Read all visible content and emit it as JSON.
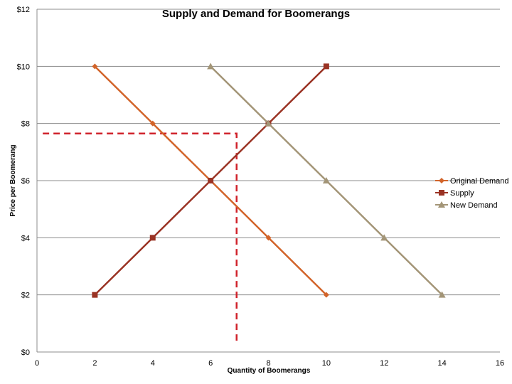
{
  "chart_data": {
    "type": "line",
    "title": "Supply and Demand for Boomerangs",
    "xlabel": "Quantity of Boomerangs",
    "ylabel": "Price per Boomerang",
    "xlim": [
      0,
      16
    ],
    "ylim": [
      0,
      12
    ],
    "x_ticks": [
      "0",
      "2",
      "4",
      "6",
      "8",
      "10",
      "12",
      "14",
      "16"
    ],
    "y_ticks": [
      "$0",
      "$2",
      "$4",
      "$6",
      "$8",
      "$10",
      "$12"
    ],
    "grid": "horizontal",
    "legend_position": "right",
    "series": [
      {
        "name": "Original Demand",
        "color": "#d2642a",
        "marker": "diamond",
        "points": [
          [
            2,
            10
          ],
          [
            4,
            8
          ],
          [
            6,
            6
          ],
          [
            8,
            4
          ],
          [
            10,
            2
          ]
        ]
      },
      {
        "name": "Supply",
        "color": "#9a3324",
        "marker": "square",
        "points": [
          [
            2,
            2
          ],
          [
            4,
            4
          ],
          [
            6,
            6
          ],
          [
            8,
            8
          ],
          [
            10,
            10
          ]
        ]
      },
      {
        "name": "New Demand",
        "color": "#a39577",
        "marker": "triangle",
        "points": [
          [
            6,
            10
          ],
          [
            8,
            8
          ],
          [
            10,
            6
          ],
          [
            12,
            4
          ],
          [
            14,
            2
          ]
        ]
      }
    ],
    "annotations": [
      {
        "type": "dashed-guide",
        "color": "#d0222b",
        "points": [
          [
            0.2,
            7.65
          ],
          [
            6.9,
            7.65
          ],
          [
            6.9,
            0.3
          ]
        ]
      }
    ]
  }
}
